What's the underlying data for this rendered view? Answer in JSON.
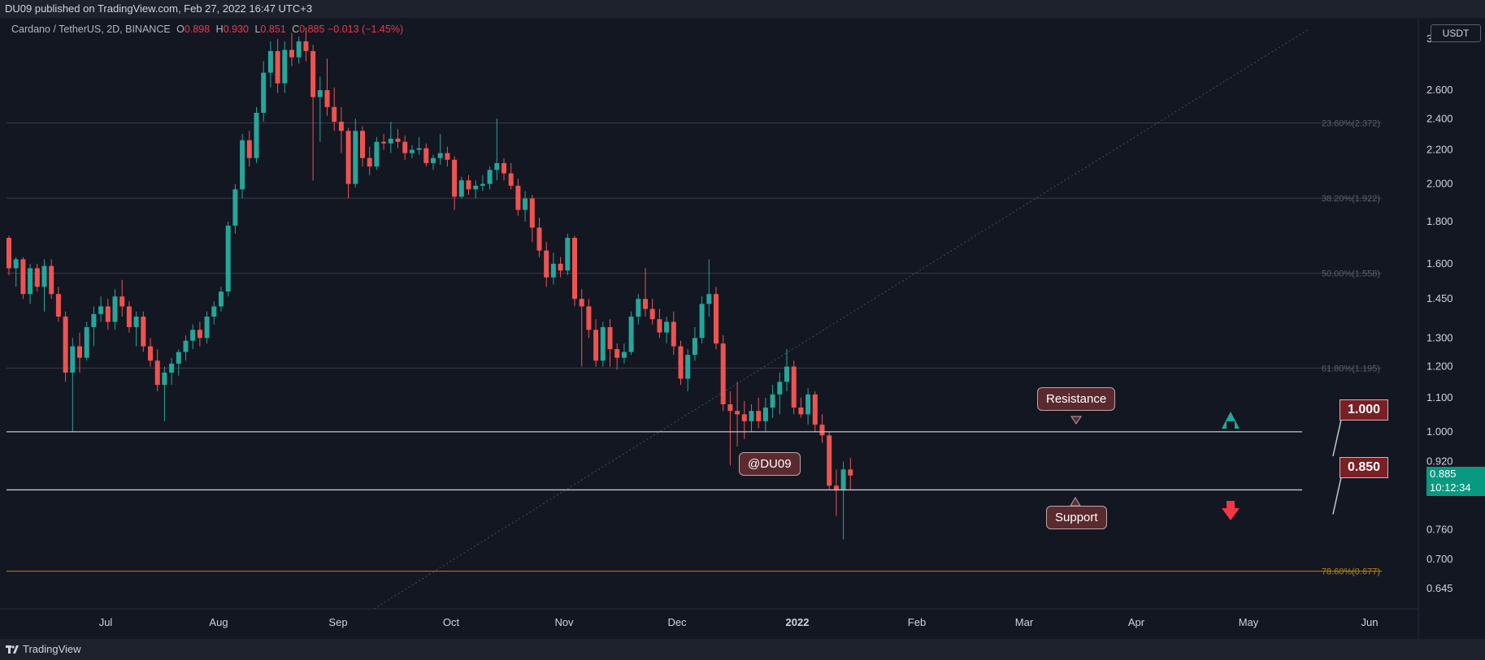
{
  "header": {
    "published": "DU09 published on TradingView.com, Feb 27, 2022 16:47 UTC+3"
  },
  "legend": {
    "symbol": "Cardano / TetherUS, 2D, BINANCE",
    "open_label": "O",
    "open": "0.898",
    "high_label": "H",
    "high": "0.930",
    "low_label": "L",
    "low": "0.851",
    "close_label": "C",
    "close": "0.885",
    "change": "−0.013 (−1.45%)"
  },
  "currency_label": "USDT",
  "last_price": {
    "value": "0.885",
    "countdown": "10:12:34"
  },
  "annotations": {
    "resistance_label": "Resistance",
    "support_label": "Support",
    "watermark": "@DU09",
    "resistance_value": "1.000",
    "support_value": "0.850"
  },
  "footer": {
    "brand": "TradingView"
  },
  "colors": {
    "bg": "#131722",
    "up": "#26a69a",
    "down": "#ef5350",
    "fib": "#3a3e4a",
    "fib_text": "#5d606b",
    "fib_low": "#b8860b"
  },
  "chart_data": {
    "type": "candlestick",
    "scale": "log",
    "y_ticks": [
      "3.000",
      "2.600",
      "2.400",
      "2.200",
      "2.000",
      "1.800",
      "1.600",
      "1.450",
      "1.300",
      "1.200",
      "1.100",
      "1.000",
      "0.920",
      "0.760",
      "0.700",
      "0.645"
    ],
    "x_ticks": [
      "Jul",
      "Aug",
      "Sep",
      "Oct",
      "Nov",
      "Dec",
      "2022",
      "Feb",
      "Mar",
      "Apr",
      "May",
      "Jun"
    ],
    "fib_levels": [
      {
        "label": "23.60%(2.372)",
        "value": 2.372
      },
      {
        "label": "38.20%(1.922)",
        "value": 1.922
      },
      {
        "label": "50.00%(1.558)",
        "value": 1.558
      },
      {
        "label": "61.80%(1.195)",
        "value": 1.195
      },
      {
        "label": "78.60%(0.677)",
        "value": 0.677
      }
    ],
    "horizontal_lines": [
      1.0,
      0.85
    ],
    "candles": [
      [
        1.72,
        1.73,
        1.55,
        1.58
      ],
      [
        1.58,
        1.63,
        1.5,
        1.62
      ],
      [
        1.62,
        1.63,
        1.45,
        1.47
      ],
      [
        1.47,
        1.6,
        1.43,
        1.58
      ],
      [
        1.58,
        1.6,
        1.48,
        1.5
      ],
      [
        1.5,
        1.62,
        1.4,
        1.59
      ],
      [
        1.59,
        1.62,
        1.45,
        1.47
      ],
      [
        1.47,
        1.5,
        1.36,
        1.38
      ],
      [
        1.38,
        1.4,
        1.15,
        1.18
      ],
      [
        1.18,
        1.3,
        1.0,
        1.27
      ],
      [
        1.27,
        1.32,
        1.18,
        1.23
      ],
      [
        1.23,
        1.36,
        1.22,
        1.34
      ],
      [
        1.34,
        1.42,
        1.27,
        1.39
      ],
      [
        1.39,
        1.46,
        1.36,
        1.42
      ],
      [
        1.42,
        1.45,
        1.33,
        1.36
      ],
      [
        1.36,
        1.49,
        1.33,
        1.46
      ],
      [
        1.46,
        1.53,
        1.38,
        1.42
      ],
      [
        1.42,
        1.44,
        1.32,
        1.34
      ],
      [
        1.34,
        1.4,
        1.27,
        1.38
      ],
      [
        1.38,
        1.4,
        1.25,
        1.27
      ],
      [
        1.27,
        1.3,
        1.2,
        1.22
      ],
      [
        1.22,
        1.26,
        1.12,
        1.14
      ],
      [
        1.14,
        1.2,
        1.03,
        1.18
      ],
      [
        1.18,
        1.23,
        1.14,
        1.21
      ],
      [
        1.21,
        1.26,
        1.17,
        1.25
      ],
      [
        1.25,
        1.31,
        1.22,
        1.29
      ],
      [
        1.29,
        1.35,
        1.26,
        1.33
      ],
      [
        1.33,
        1.36,
        1.27,
        1.3
      ],
      [
        1.3,
        1.4,
        1.28,
        1.38
      ],
      [
        1.38,
        1.44,
        1.35,
        1.42
      ],
      [
        1.42,
        1.5,
        1.4,
        1.48
      ],
      [
        1.48,
        1.8,
        1.46,
        1.78
      ],
      [
        1.78,
        2.0,
        1.74,
        1.97
      ],
      [
        1.97,
        2.3,
        1.92,
        2.26
      ],
      [
        2.26,
        2.32,
        2.1,
        2.15
      ],
      [
        2.15,
        2.48,
        2.12,
        2.44
      ],
      [
        2.44,
        2.82,
        2.38,
        2.73
      ],
      [
        2.73,
        2.98,
        2.62,
        2.9
      ],
      [
        2.9,
        3.0,
        2.58,
        2.65
      ],
      [
        2.65,
        2.98,
        2.58,
        2.91
      ],
      [
        2.91,
        3.05,
        2.78,
        2.85
      ],
      [
        2.85,
        3.02,
        2.8,
        2.98
      ],
      [
        2.98,
        3.1,
        2.82,
        2.9
      ],
      [
        2.9,
        2.95,
        2.02,
        2.55
      ],
      [
        2.55,
        2.7,
        2.25,
        2.6
      ],
      [
        2.6,
        2.84,
        2.42,
        2.48
      ],
      [
        2.48,
        2.62,
        2.32,
        2.38
      ],
      [
        2.38,
        2.48,
        2.18,
        2.32
      ],
      [
        2.32,
        2.34,
        1.92,
        2.0
      ],
      [
        2.0,
        2.4,
        1.98,
        2.32
      ],
      [
        2.32,
        2.35,
        2.1,
        2.15
      ],
      [
        2.15,
        2.22,
        2.05,
        2.1
      ],
      [
        2.1,
        2.28,
        2.08,
        2.25
      ],
      [
        2.25,
        2.3,
        2.2,
        2.24
      ],
      [
        2.24,
        2.38,
        2.18,
        2.27
      ],
      [
        2.27,
        2.33,
        2.21,
        2.25
      ],
      [
        2.25,
        2.29,
        2.14,
        2.18
      ],
      [
        2.18,
        2.23,
        2.15,
        2.2
      ],
      [
        2.2,
        2.28,
        2.17,
        2.21
      ],
      [
        2.21,
        2.24,
        2.1,
        2.12
      ],
      [
        2.12,
        2.17,
        2.08,
        2.15
      ],
      [
        2.15,
        2.3,
        2.11,
        2.18
      ],
      [
        2.18,
        2.22,
        2.1,
        2.14
      ],
      [
        2.14,
        2.16,
        1.86,
        1.93
      ],
      [
        1.93,
        2.04,
        1.92,
        2.02
      ],
      [
        2.02,
        2.05,
        1.94,
        1.97
      ],
      [
        1.97,
        2.02,
        1.92,
        1.99
      ],
      [
        1.99,
        2.05,
        1.96,
        2.0
      ],
      [
        2.0,
        2.1,
        1.97,
        2.08
      ],
      [
        2.08,
        2.4,
        2.02,
        2.12
      ],
      [
        2.12,
        2.15,
        2.02,
        2.06
      ],
      [
        2.06,
        2.12,
        1.97,
        1.99
      ],
      [
        1.99,
        2.03,
        1.83,
        1.86
      ],
      [
        1.86,
        1.96,
        1.8,
        1.92
      ],
      [
        1.92,
        1.94,
        1.7,
        1.77
      ],
      [
        1.77,
        1.82,
        1.63,
        1.66
      ],
      [
        1.66,
        1.7,
        1.5,
        1.54
      ],
      [
        1.54,
        1.65,
        1.51,
        1.6
      ],
      [
        1.6,
        1.63,
        1.54,
        1.57
      ],
      [
        1.57,
        1.74,
        1.55,
        1.72
      ],
      [
        1.72,
        1.73,
        1.42,
        1.45
      ],
      [
        1.45,
        1.49,
        1.2,
        1.42
      ],
      [
        1.42,
        1.45,
        1.3,
        1.33
      ],
      [
        1.33,
        1.37,
        1.2,
        1.22
      ],
      [
        1.22,
        1.36,
        1.2,
        1.34
      ],
      [
        1.34,
        1.37,
        1.2,
        1.26
      ],
      [
        1.26,
        1.28,
        1.19,
        1.23
      ],
      [
        1.23,
        1.28,
        1.21,
        1.25
      ],
      [
        1.25,
        1.4,
        1.24,
        1.38
      ],
      [
        1.38,
        1.47,
        1.35,
        1.45
      ],
      [
        1.45,
        1.58,
        1.38,
        1.41
      ],
      [
        1.41,
        1.45,
        1.35,
        1.37
      ],
      [
        1.37,
        1.41,
        1.3,
        1.32
      ],
      [
        1.32,
        1.38,
        1.28,
        1.36
      ],
      [
        1.36,
        1.4,
        1.24,
        1.27
      ],
      [
        1.27,
        1.29,
        1.14,
        1.16
      ],
      [
        1.16,
        1.26,
        1.12,
        1.24
      ],
      [
        1.24,
        1.34,
        1.22,
        1.3
      ],
      [
        1.3,
        1.46,
        1.28,
        1.43
      ],
      [
        1.43,
        1.62,
        1.38,
        1.47
      ],
      [
        1.47,
        1.5,
        1.26,
        1.28
      ],
      [
        1.28,
        1.31,
        1.06,
        1.08
      ],
      [
        1.08,
        1.12,
        0.91,
        1.06
      ],
      [
        1.06,
        1.15,
        0.96,
        1.05
      ],
      [
        1.05,
        1.09,
        0.98,
        1.03
      ],
      [
        1.03,
        1.08,
        1.0,
        1.06
      ],
      [
        1.06,
        1.1,
        1.01,
        1.03
      ],
      [
        1.03,
        1.1,
        1.0,
        1.07
      ],
      [
        1.07,
        1.14,
        1.04,
        1.11
      ],
      [
        1.11,
        1.18,
        1.05,
        1.15
      ],
      [
        1.15,
        1.26,
        1.12,
        1.2
      ],
      [
        1.2,
        1.22,
        1.05,
        1.07
      ],
      [
        1.07,
        1.1,
        1.04,
        1.05
      ],
      [
        1.05,
        1.13,
        1.02,
        1.11
      ],
      [
        1.11,
        1.12,
        1.0,
        1.02
      ],
      [
        1.02,
        1.05,
        0.97,
        0.99
      ],
      [
        0.99,
        1.0,
        0.85,
        0.86
      ],
      [
        0.86,
        0.9,
        0.79,
        0.85
      ],
      [
        0.85,
        0.92,
        0.74,
        0.9
      ],
      [
        0.9,
        0.93,
        0.85,
        0.885
      ]
    ]
  }
}
